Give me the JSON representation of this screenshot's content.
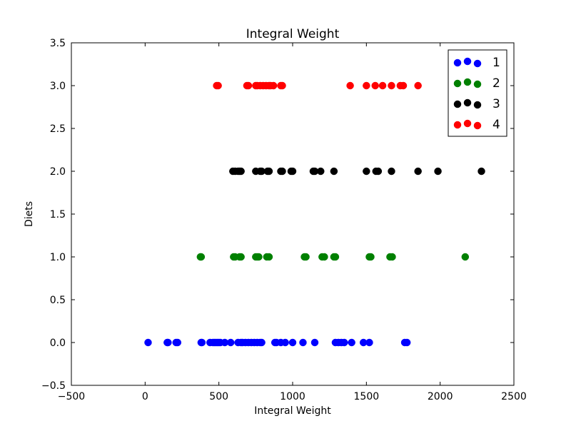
{
  "chart_data": {
    "type": "scatter",
    "title": "Integral Weight",
    "xlabel": "Integral Weight",
    "ylabel": "Diets",
    "xlim": [
      -500,
      2500
    ],
    "ylim": [
      -0.5,
      3.5
    ],
    "xticks": [
      -500,
      0,
      500,
      1000,
      1500,
      2000,
      2500
    ],
    "xtick_labels": [
      "−500",
      "0",
      "500",
      "1000",
      "1500",
      "2000",
      "2500"
    ],
    "yticks": [
      -0.5,
      0.0,
      0.5,
      1.0,
      1.5,
      2.0,
      2.5,
      3.0,
      3.5
    ],
    "ytick_labels": [
      "−0.5",
      "0.0",
      "0.5",
      "1.0",
      "1.5",
      "2.0",
      "2.5",
      "3.0",
      "3.5"
    ],
    "grid": false,
    "legend_position": "top-right",
    "series": [
      {
        "name": "1",
        "color": "#0000ff",
        "y": 0.0,
        "x": [
          20,
          150,
          155,
          210,
          220,
          380,
          385,
          440,
          460,
          470,
          480,
          490,
          500,
          510,
          540,
          580,
          630,
          650,
          660,
          680,
          700,
          720,
          740,
          760,
          780,
          790,
          880,
          890,
          920,
          950,
          1000,
          1070,
          1150,
          1290,
          1310,
          1330,
          1350,
          1400,
          1480,
          1520,
          1760,
          1775
        ]
      },
      {
        "name": "2",
        "color": "#008000",
        "y": 1.0,
        "x": [
          375,
          380,
          600,
          610,
          640,
          650,
          750,
          760,
          770,
          825,
          840,
          1080,
          1090,
          1200,
          1215,
          1280,
          1290,
          1520,
          1530,
          1660,
          1675,
          2170
        ]
      },
      {
        "name": "3",
        "color": "#000000",
        "y": 2.0,
        "x": [
          595,
          610,
          630,
          640,
          650,
          750,
          780,
          790,
          830,
          840,
          920,
          930,
          990,
          1000,
          1140,
          1150,
          1190,
          1280,
          1500,
          1565,
          1580,
          1670,
          1850,
          1985,
          2280
        ]
      },
      {
        "name": "4",
        "color": "#ff0000",
        "y": 3.0,
        "x": [
          485,
          495,
          690,
          700,
          750,
          760,
          780,
          800,
          820,
          840,
          850,
          870,
          920,
          930,
          1390,
          1500,
          1560,
          1610,
          1670,
          1730,
          1750,
          1850
        ]
      }
    ]
  }
}
